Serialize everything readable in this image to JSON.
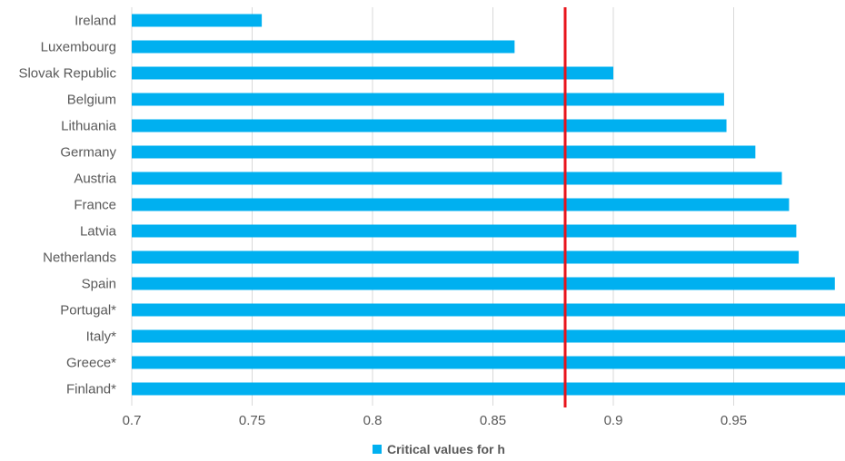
{
  "chart_data": {
    "type": "bar",
    "orientation": "horizontal",
    "categories": [
      "Ireland",
      "Luxembourg",
      "Slovak Republic",
      "Belgium",
      "Lithuania",
      "Germany",
      "Austria",
      "France",
      "Latvia",
      "Netherlands",
      "Spain",
      "Portugal*",
      "Italy*",
      "Greece*",
      "Finland*"
    ],
    "series": [
      {
        "name": "Critical values for h",
        "values": [
          0.754,
          0.859,
          0.9,
          0.946,
          0.947,
          0.959,
          0.97,
          0.973,
          0.976,
          0.977,
          0.992,
          1.0,
          1.0,
          1.0,
          1.0
        ]
      }
    ],
    "reference_line": {
      "value": 0.88,
      "color": "#e8141b"
    },
    "xlim": [
      0.7,
      1.0
    ],
    "xticks": [
      "0.7",
      "0.75",
      "0.8",
      "0.85",
      "0.9",
      "0.95"
    ],
    "grid": true,
    "legend_position": "bottom",
    "colors": {
      "bar": "#00b0f0",
      "grid": "#d9d9d9",
      "text": "#595959"
    }
  }
}
